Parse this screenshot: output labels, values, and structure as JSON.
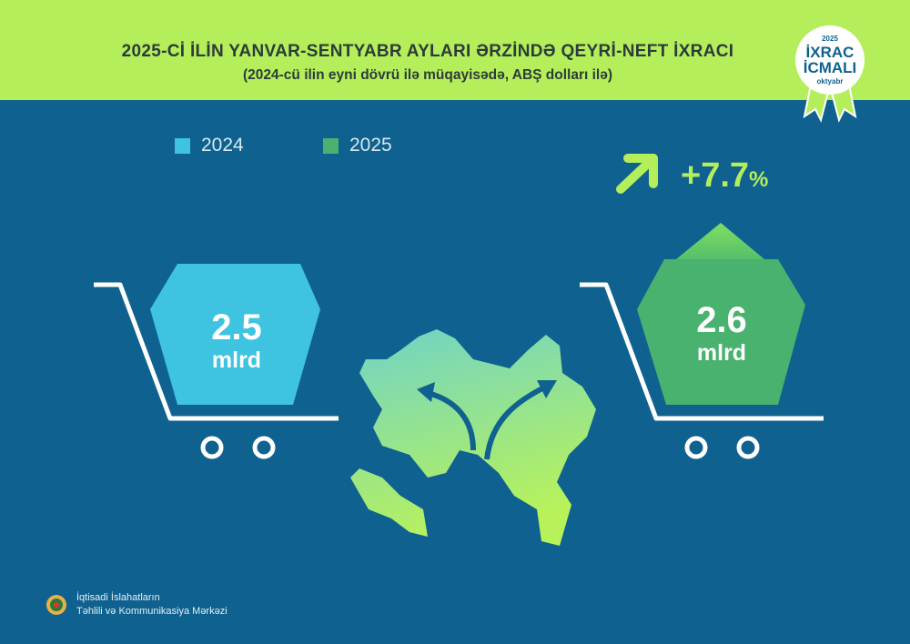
{
  "header": {
    "title": "2025-Cİ İLİN YANVAR-SENTYABR AYLARI ƏRZİNDƏ QEYRİ-NEFT İXRACI",
    "subtitle": "(2024-cü ilin eyni dövrü ilə müqayisədə, ABŞ dolları ilə)"
  },
  "badge": {
    "year": "2025",
    "line1": "İXRAC",
    "line2": "İCMALI",
    "month": "oktyabr"
  },
  "colors": {
    "header": "#b4ee5a",
    "background": "#0f6190",
    "series_2024": "#3ec3e0",
    "series_2025": "#48b26e",
    "accent": "#b4ee5a"
  },
  "chart_data": {
    "type": "bar",
    "categories": [
      "2024",
      "2025"
    ],
    "values": [
      2.5,
      2.6
    ],
    "value_labels": [
      "2.5",
      "2.6"
    ],
    "unit": "mlrd",
    "change": "+7.7",
    "change_unit": "%",
    "legend": [
      "2024",
      "2025"
    ],
    "legend_position": "top-left"
  },
  "footer": {
    "line1": "İqtisadi İslahatların",
    "line2": "Təhlili və Kommunikasiya Mərkəzi"
  }
}
